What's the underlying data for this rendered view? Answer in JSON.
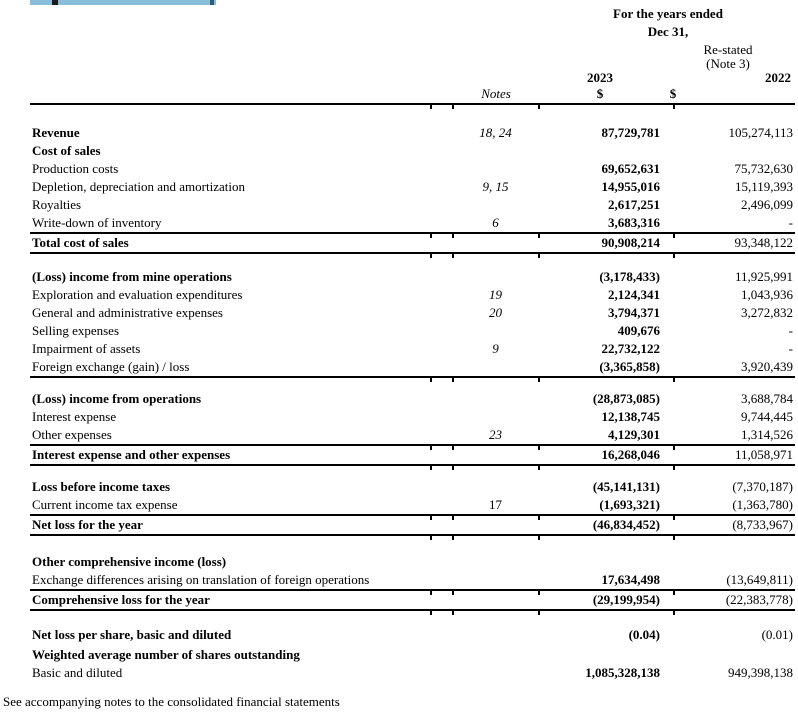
{
  "artifact": {
    "color": "#89bedb",
    "description": "cropped text-selection highlight at top of page"
  },
  "header": {
    "period_line1": "For the years ended",
    "period_line2": "Dec 31,",
    "restated_line1": "Re-stated",
    "restated_line2": "(Note 3)",
    "year_2023": "2023",
    "year_2022": "2022",
    "notes_label": "Notes",
    "currency_2023": "$",
    "currency_2022": "$"
  },
  "table": {
    "rows": [
      {
        "label": "Revenue",
        "notes": "18, 24",
        "v2023": "87,729,781",
        "v2022": "105,274,113",
        "bold": true,
        "gap": 19
      },
      {
        "label": "Cost of sales",
        "notes": "",
        "v2023": "",
        "v2022": "",
        "bold": true
      },
      {
        "label": "Production costs",
        "notes": "",
        "v2023": "69,652,631",
        "v2022": "75,732,630"
      },
      {
        "label": "Depletion, depreciation and amortization",
        "notes": "9, 15",
        "v2023": "14,955,016",
        "v2022": "15,119,393"
      },
      {
        "label": "Royalties",
        "notes": "",
        "v2023": "2,617,251",
        "v2022": "2,496,099"
      },
      {
        "label": "Write-down of inventory",
        "notes": "6",
        "v2023": "3,683,316",
        "v2022": "-",
        "rule": true
      },
      {
        "label": "Total cost of sales",
        "notes": "",
        "v2023": "90,908,214",
        "v2022": "93,348,122",
        "bold": true,
        "rule": true
      },
      {
        "label": "(Loss) income from mine operations",
        "notes": "",
        "v2023": "(3,178,433)",
        "v2022": "11,925,991",
        "bold": true,
        "gap": 14
      },
      {
        "label": "Exploration and evaluation expenditures",
        "notes": "19",
        "v2023": "2,124,341",
        "v2022": "1,043,936"
      },
      {
        "label": "General and administrative expenses",
        "notes": "20",
        "v2023": "3,794,371",
        "v2022": "3,272,832"
      },
      {
        "label": "Selling expenses",
        "notes": "",
        "v2023": "409,676",
        "v2022": "-"
      },
      {
        "label": "Impairment of assets",
        "notes": "9",
        "v2023": "22,732,122",
        "v2022": "-"
      },
      {
        "label": "Foreign exchange (gain) / loss",
        "notes": "",
        "v2023": "(3,365,858)",
        "v2022": "3,920,439",
        "rule": true
      },
      {
        "label": "(Loss) income from operations",
        "notes": "",
        "v2023": "(28,873,085)",
        "v2022": "3,688,784",
        "bold": true,
        "gap": 12
      },
      {
        "label": "Interest expense",
        "notes": "",
        "v2023": "12,138,745",
        "v2022": "9,744,445"
      },
      {
        "label": "Other expenses",
        "notes": "23",
        "v2023": "4,129,301",
        "v2022": "1,314,526",
        "rule": true
      },
      {
        "label": "Interest expense and other expenses",
        "notes": "",
        "v2023": "16,268,046",
        "v2022": "11,058,971",
        "bold": true,
        "rule": true
      },
      {
        "label": "Loss before income taxes",
        "notes": "",
        "v2023": "(45,141,131)",
        "v2022": "(7,370,187)",
        "bold": true,
        "gap": 12
      },
      {
        "label": "Current income tax expense",
        "notes": "17",
        "v2023": "(1,693,321)",
        "v2022": "(1,363,780)",
        "rule": true,
        "notes_upright": true
      },
      {
        "label": "Net loss for the year",
        "notes": "",
        "v2023": "(46,834,452)",
        "v2022": "(8,733,967)",
        "bold": true,
        "rule": true
      },
      {
        "label": "Other comprehensive income (loss)",
        "notes": "",
        "v2023": "",
        "v2022": "",
        "bold": true,
        "gap": 17
      },
      {
        "label": "Exchange differences arising on translation of foreign operations",
        "notes": "",
        "v2023": "17,634,498",
        "v2022": "(13,649,811)",
        "rule": true
      },
      {
        "label": "Comprehensive loss for the year",
        "notes": "",
        "v2023": "(29,199,954)",
        "v2022": "(22,383,778)",
        "bold": true,
        "rule": true
      },
      {
        "label": "Net loss per share, basic and diluted",
        "notes": "",
        "v2023": "(0.04)",
        "v2022": "(0.01)",
        "bold": true,
        "gap": 15
      },
      {
        "label": "Weighted average number of shares outstanding",
        "notes": "",
        "v2023": "",
        "v2022": "",
        "bold": true,
        "gap": 2
      },
      {
        "label": "Basic and diluted",
        "notes": "",
        "v2023": "1,085,328,138",
        "v2022": "949,398,138"
      }
    ]
  },
  "footer": {
    "note": "See accompanying notes to the consolidated financial statements"
  }
}
